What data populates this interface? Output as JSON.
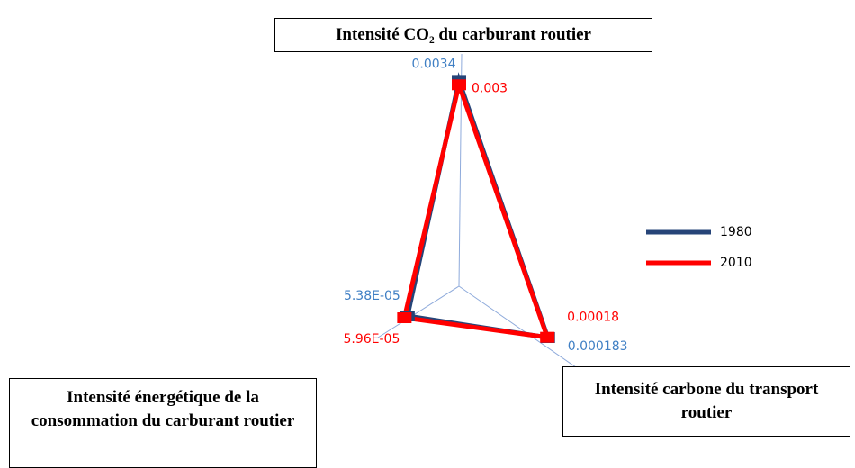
{
  "chart_data": {
    "type": "radar",
    "categories": [
      "Intensité CO₂ du carburant routier",
      "Intensité carbone du transport routier",
      "Intensité énergétique de la consommation du carburant routier"
    ],
    "series": [
      {
        "name": "1980",
        "color": "#264478",
        "label_color": "#3f7fc4",
        "values": [
          0.0034,
          0.000183,
          5.38e-05
        ],
        "value_labels": [
          "0.0034",
          "0.000183",
          "5.38E-05"
        ]
      },
      {
        "name": "2010",
        "color": "#ff0000",
        "label_color": "#ff0000",
        "values": [
          0.003,
          0.00018,
          5.96e-05
        ],
        "value_labels": [
          "0.003",
          "0.00018",
          "5.96E-05"
        ]
      }
    ],
    "rscale": "log",
    "rlim": [
      1e-05,
      0.004
    ],
    "legend": "right"
  }
}
